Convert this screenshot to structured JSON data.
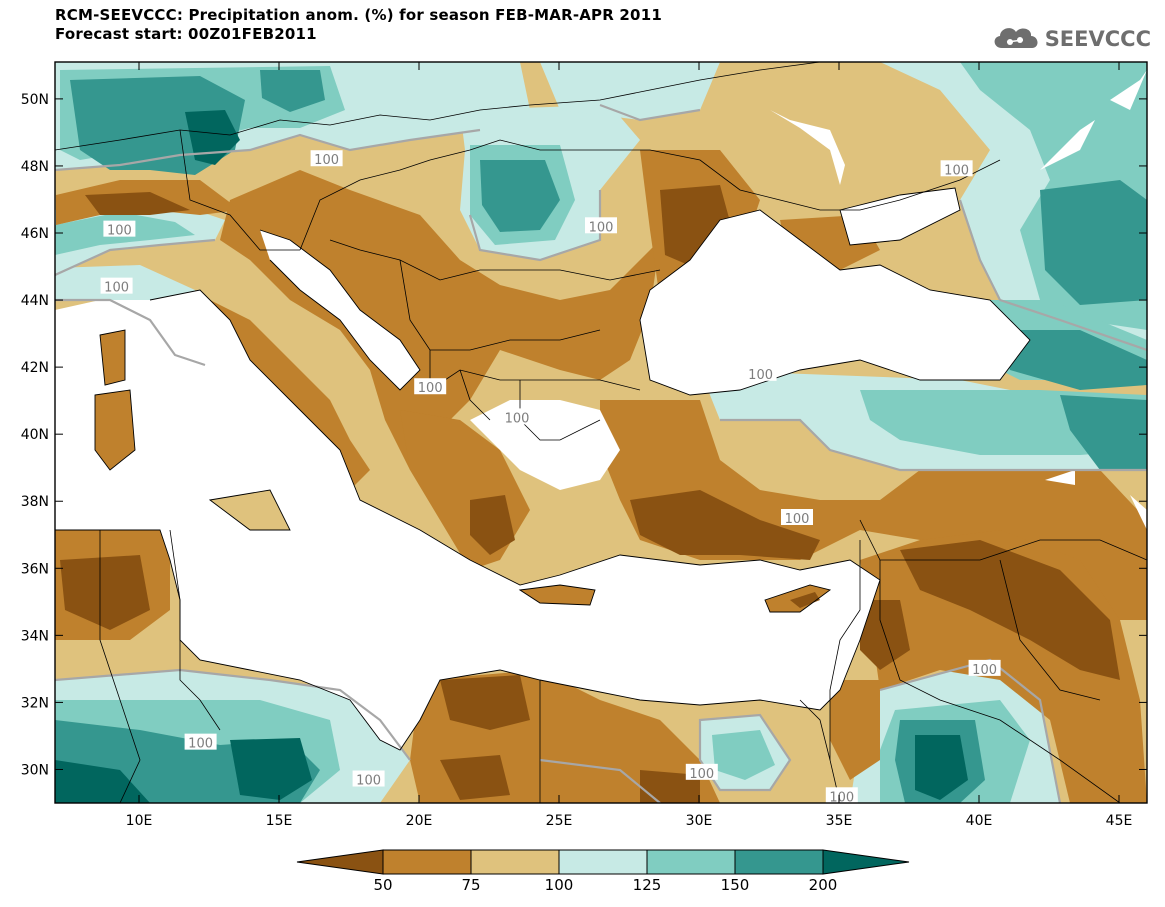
{
  "header": {
    "title_line1": "RCM-SEEVCCC: Precipitation anom. (%) for season FEB-MAR-APR 2011",
    "title_line2": "Forecast start: 00Z01FEB2011",
    "logo_text": "SEEVCCC",
    "logo_icon": "cloud-icon"
  },
  "map": {
    "lon_ticks": [
      "10E",
      "15E",
      "20E",
      "25E",
      "30E",
      "35E",
      "40E",
      "45E"
    ],
    "lat_ticks": [
      "50N",
      "48N",
      "46N",
      "44N",
      "42N",
      "40N",
      "38N",
      "36N",
      "34N",
      "32N",
      "30N"
    ],
    "contour_labels": [
      {
        "text": "100",
        "lon": 16.7,
        "lat": 48.2
      },
      {
        "text": "100",
        "lon": 9.3,
        "lat": 46.1
      },
      {
        "text": "100",
        "lon": 9.2,
        "lat": 44.4
      },
      {
        "text": "100",
        "lon": 26.5,
        "lat": 46.2
      },
      {
        "text": "100",
        "lon": 39.2,
        "lat": 47.9
      },
      {
        "text": "100",
        "lon": 32.2,
        "lat": 41.8
      },
      {
        "text": "100",
        "lon": 23.5,
        "lat": 40.5
      },
      {
        "text": "100",
        "lon": 20.4,
        "lat": 41.4
      },
      {
        "text": "100",
        "lon": 33.5,
        "lat": 37.5
      },
      {
        "text": "100",
        "lon": 40.2,
        "lat": 33.0
      },
      {
        "text": "100",
        "lon": 30.1,
        "lat": 29.9
      },
      {
        "text": "100",
        "lon": 35.1,
        "lat": 29.2
      },
      {
        "text": "100",
        "lon": 12.2,
        "lat": 30.8
      },
      {
        "text": "100",
        "lon": 18.2,
        "lat": 29.7
      }
    ],
    "colors": {
      "below50": "#8a5212",
      "50-75": "#bf812d",
      "75-100": "#dfc27d",
      "100-125": "#c7eae5",
      "125-150": "#80cdc1",
      "150-200": "#35978f",
      "above200": "#01665e",
      "sea": "#ffffff",
      "contour": "#a7a7a7"
    }
  },
  "colorbar": {
    "labels": [
      "50",
      "75",
      "100",
      "125",
      "150",
      "200"
    ]
  }
}
